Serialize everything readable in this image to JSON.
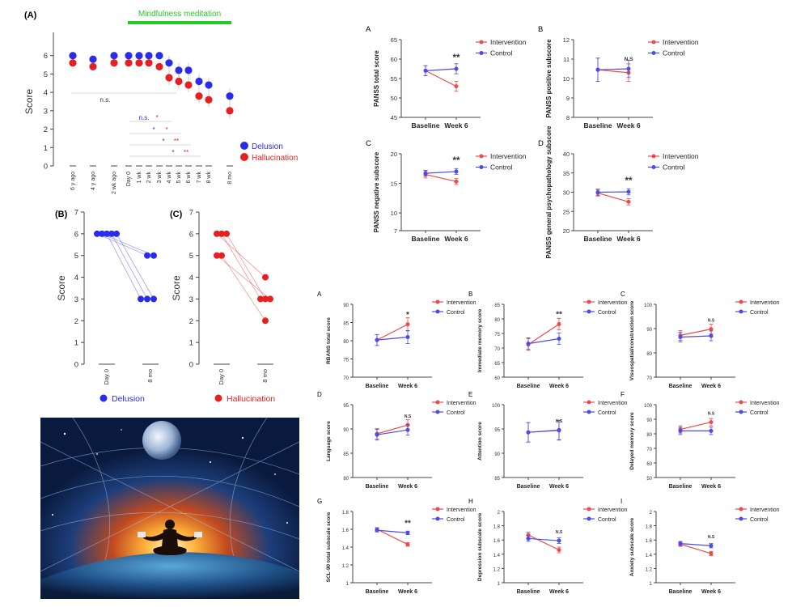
{
  "colors": {
    "delusion": "#2b2bea",
    "hallucination": "#e62020",
    "mindfulness_bar": "#22cc22",
    "intervention": "#ef4a4a",
    "control": "#4b4be8",
    "axis": "#444444"
  },
  "panelA": {
    "panel_label": "(A)",
    "bar_label": "Mindfulness meditation",
    "ylabel": "Score",
    "categories": [
      "6 y ago",
      "4 y ago",
      "2 wk ago",
      "Day 0",
      "1 wk",
      "2 wk",
      "3 wk",
      "4 wk",
      "5 wk",
      "6 wk",
      "7 wk",
      "8 wk",
      "8 mo"
    ],
    "legend": [
      "Delusion",
      "Hallucination"
    ],
    "ns_label": "n.s.",
    "sig_rows": [
      {
        "left": "n.s.",
        "right": "*"
      },
      {
        "left": "*",
        "right": "*"
      },
      {
        "left": "*",
        "right": "**"
      },
      {
        "left": "*",
        "right": "**"
      }
    ]
  },
  "panelB": {
    "panel_label": "(B)",
    "ylabel": "Score",
    "xcats": [
      "Day 0",
      "8 mo"
    ],
    "legend": "Delusion"
  },
  "panelC": {
    "panel_label": "(C)",
    "ylabel": "Score",
    "xcats": [
      "Day 0",
      "8 mo"
    ],
    "legend": "Hallucination"
  },
  "chart_data": [
    {
      "id": "mm-timeline",
      "type": "scatter",
      "ylabel": "Score",
      "ylim": [
        0,
        7
      ],
      "categories": [
        "6 y ago",
        "4 y ago",
        "2 wk ago",
        "Day 0",
        "1 wk",
        "2 wk",
        "3 wk",
        "4 wk",
        "5 wk",
        "6 wk",
        "7 wk",
        "8 wk",
        "8 mo"
      ],
      "series": [
        {
          "name": "Delusion",
          "values": [
            6,
            5.8,
            6,
            6,
            6,
            6,
            6,
            5.6,
            5.2,
            5.2,
            4.6,
            4.4,
            3.8
          ]
        },
        {
          "name": "Hallucination",
          "values": [
            5.6,
            5.4,
            5.6,
            5.6,
            5.6,
            5.6,
            5.4,
            4.8,
            4.6,
            4.4,
            3.8,
            3.6,
            3.0
          ]
        }
      ]
    },
    {
      "id": "delusion-individual",
      "type": "line",
      "ylabel": "Score",
      "ylim": [
        0,
        7
      ],
      "categories": [
        "Day 0",
        "8 mo"
      ],
      "series": [
        {
          "values": [
            6,
            5
          ]
        },
        {
          "values": [
            6,
            5
          ]
        },
        {
          "values": [
            6,
            3
          ]
        },
        {
          "values": [
            6,
            3
          ]
        },
        {
          "values": [
            6,
            3
          ]
        }
      ]
    },
    {
      "id": "hallucination-individual",
      "type": "line",
      "ylabel": "Score",
      "ylim": [
        0,
        7
      ],
      "categories": [
        "Day 0",
        "8 mo"
      ],
      "series": [
        {
          "values": [
            6,
            4
          ]
        },
        {
          "values": [
            6,
            3
          ]
        },
        {
          "values": [
            6,
            3
          ]
        },
        {
          "values": [
            5,
            3
          ]
        },
        {
          "values": [
            5,
            2
          ]
        }
      ]
    },
    {
      "id": "panss-total",
      "panel": "A",
      "type": "line",
      "categories": [
        "Baseline",
        "Week 6"
      ],
      "ylabel": "PANSS total score",
      "ylim": [
        45,
        65
      ],
      "ticks": [
        45,
        50,
        55,
        60,
        65
      ],
      "series": [
        {
          "name": "Intervention",
          "values": [
            57,
            53
          ],
          "err": [
            1.3,
            1.3
          ]
        },
        {
          "name": "Control",
          "values": [
            57,
            57.5
          ],
          "err": [
            1.3,
            1.3
          ]
        }
      ],
      "sig": "**"
    },
    {
      "id": "panss-positive",
      "panel": "B",
      "type": "line",
      "categories": [
        "Baseline",
        "Week 6"
      ],
      "ylabel": "PANSS positive subscore",
      "ylim": [
        8,
        12
      ],
      "ticks": [
        8,
        9,
        10,
        11,
        12
      ],
      "series": [
        {
          "name": "Intervention",
          "values": [
            10.45,
            10.3
          ],
          "err": [
            0.6,
            0.45
          ]
        },
        {
          "name": "Control",
          "values": [
            10.45,
            10.5
          ],
          "err": [
            0.6,
            0.45
          ]
        }
      ],
      "sig": "N.S"
    },
    {
      "id": "panss-negative",
      "panel": "C",
      "type": "line",
      "categories": [
        "Baseline",
        "Week 6"
      ],
      "ylabel": "PANSS negative subscore",
      "ylim": [
        7,
        20
      ],
      "ticks": [
        7,
        10,
        15,
        20
      ],
      "series": [
        {
          "name": "Intervention",
          "values": [
            16.5,
            15.3
          ],
          "err": [
            0.6,
            0.5
          ]
        },
        {
          "name": "Control",
          "values": [
            16.7,
            17.0
          ],
          "err": [
            0.5,
            0.5
          ]
        }
      ],
      "sig": "**"
    },
    {
      "id": "panss-general",
      "panel": "D",
      "type": "line",
      "categories": [
        "Baseline",
        "Week 6"
      ],
      "ylabel": "PANSS general psychopathology subscore",
      "ylim": [
        20,
        40
      ],
      "ticks": [
        20,
        25,
        30,
        35,
        40
      ],
      "series": [
        {
          "name": "Intervention",
          "values": [
            29.8,
            27.5
          ],
          "err": [
            0.8,
            0.8
          ]
        },
        {
          "name": "Control",
          "values": [
            30.0,
            30.1
          ],
          "err": [
            0.8,
            0.8
          ]
        }
      ],
      "sig": "**"
    },
    {
      "id": "rbans-total",
      "panel": "A",
      "type": "line",
      "categories": [
        "Baseline",
        "Week 6"
      ],
      "ylabel": "RBANS total score",
      "ylim": [
        70,
        90
      ],
      "ticks": [
        70,
        75,
        80,
        85,
        90
      ],
      "series": [
        {
          "name": "Intervention",
          "values": [
            80.2,
            84.5
          ],
          "err": [
            1.5,
            1.8
          ]
        },
        {
          "name": "Control",
          "values": [
            80.2,
            81.0
          ],
          "err": [
            1.5,
            1.8
          ]
        }
      ],
      "sig": "*"
    },
    {
      "id": "immediate-memory",
      "panel": "B",
      "type": "line",
      "categories": [
        "Baseline",
        "Week 6"
      ],
      "ylabel": "Immediate memory score",
      "ylim": [
        60,
        85
      ],
      "ticks": [
        60,
        65,
        70,
        75,
        80,
        85
      ],
      "series": [
        {
          "name": "Intervention",
          "values": [
            71.2,
            78.2
          ],
          "err": [
            2,
            2
          ]
        },
        {
          "name": "Control",
          "values": [
            71.5,
            73.2
          ],
          "err": [
            2,
            2
          ]
        }
      ],
      "sig": "**"
    },
    {
      "id": "visuospatial",
      "panel": "C",
      "type": "line",
      "categories": [
        "Baseline",
        "Week 6"
      ],
      "ylabel": "Visuospatial/construction score",
      "ylim": [
        70,
        100
      ],
      "ticks": [
        70,
        80,
        90,
        100
      ],
      "series": [
        {
          "name": "Intervention",
          "values": [
            87.2,
            89.8
          ],
          "err": [
            2,
            2
          ]
        },
        {
          "name": "Control",
          "values": [
            86.5,
            87.0
          ],
          "err": [
            2,
            2
          ]
        }
      ],
      "sig": "N.S"
    },
    {
      "id": "language",
      "panel": "D",
      "type": "line",
      "categories": [
        "Baseline",
        "Week 6"
      ],
      "ylabel": "Language score",
      "ylim": [
        80,
        95
      ],
      "ticks": [
        80,
        85,
        90,
        95
      ],
      "series": [
        {
          "name": "Intervention",
          "values": [
            89.0,
            90.8
          ],
          "err": [
            1.1,
            1.1
          ]
        },
        {
          "name": "Control",
          "values": [
            88.8,
            89.8
          ],
          "err": [
            1.1,
            1.1
          ]
        }
      ],
      "sig": "N.S"
    },
    {
      "id": "attention",
      "panel": "E",
      "type": "line",
      "categories": [
        "Baseline",
        "Week 6"
      ],
      "ylabel": "Attention score",
      "ylim": [
        85,
        100
      ],
      "ticks": [
        85,
        90,
        95,
        100
      ],
      "series": [
        {
          "name": "Intervention",
          "values": [
            94.3,
            94.8
          ],
          "err": [
            2,
            2
          ]
        },
        {
          "name": "Control",
          "values": [
            94.3,
            94.7
          ],
          "err": [
            2,
            2
          ]
        }
      ],
      "sig": "N.S"
    },
    {
      "id": "delayed-memory",
      "panel": "F",
      "type": "line",
      "categories": [
        "Baseline",
        "Week 6"
      ],
      "ylabel": "Delayed memory score",
      "ylim": [
        50,
        100
      ],
      "ticks": [
        50,
        60,
        70,
        80,
        90,
        100
      ],
      "series": [
        {
          "name": "Intervention",
          "values": [
            83.0,
            88.0
          ],
          "err": [
            2.5,
            2.5
          ]
        },
        {
          "name": "Control",
          "values": [
            82.0,
            82.0
          ],
          "err": [
            2.5,
            2.5
          ]
        }
      ],
      "sig": "N.S"
    },
    {
      "id": "scl90-total",
      "panel": "G",
      "type": "line",
      "categories": [
        "Baseline",
        "Week 6"
      ],
      "ylabel": "SCL-90 total subscale score",
      "ylim": [
        1.0,
        1.8
      ],
      "ticks": [
        1.0,
        1.2,
        1.4,
        1.6,
        1.8
      ],
      "series": [
        {
          "name": "Intervention",
          "values": [
            1.6,
            1.43
          ],
          "err": [
            0.02,
            0.02
          ]
        },
        {
          "name": "Control",
          "values": [
            1.59,
            1.56
          ],
          "err": [
            0.02,
            0.02
          ]
        }
      ],
      "sig": "**"
    },
    {
      "id": "depression",
      "panel": "H",
      "type": "line",
      "categories": [
        "Baseline",
        "Week 6"
      ],
      "ylabel": "Depression subscale score",
      "ylim": [
        1.0,
        2.0
      ],
      "ticks": [
        1.0,
        1.2,
        1.4,
        1.6,
        1.8,
        2.0
      ],
      "series": [
        {
          "name": "Intervention",
          "values": [
            1.67,
            1.46
          ],
          "err": [
            0.04,
            0.04
          ]
        },
        {
          "name": "Control",
          "values": [
            1.62,
            1.59
          ],
          "err": [
            0.04,
            0.04
          ]
        }
      ],
      "sig": "N.S"
    },
    {
      "id": "anxiety",
      "panel": "I",
      "type": "line",
      "categories": [
        "Baseline",
        "Week 6"
      ],
      "ylabel": "Anxiety subscale score",
      "ylim": [
        1.0,
        2.0
      ],
      "ticks": [
        1.0,
        1.2,
        1.4,
        1.6,
        1.8,
        2.0
      ],
      "series": [
        {
          "name": "Intervention",
          "values": [
            1.54,
            1.41
          ],
          "err": [
            0.03,
            0.03
          ]
        },
        {
          "name": "Control",
          "values": [
            1.55,
            1.52
          ],
          "err": [
            0.03,
            0.03
          ]
        }
      ],
      "sig": "N.S"
    }
  ]
}
